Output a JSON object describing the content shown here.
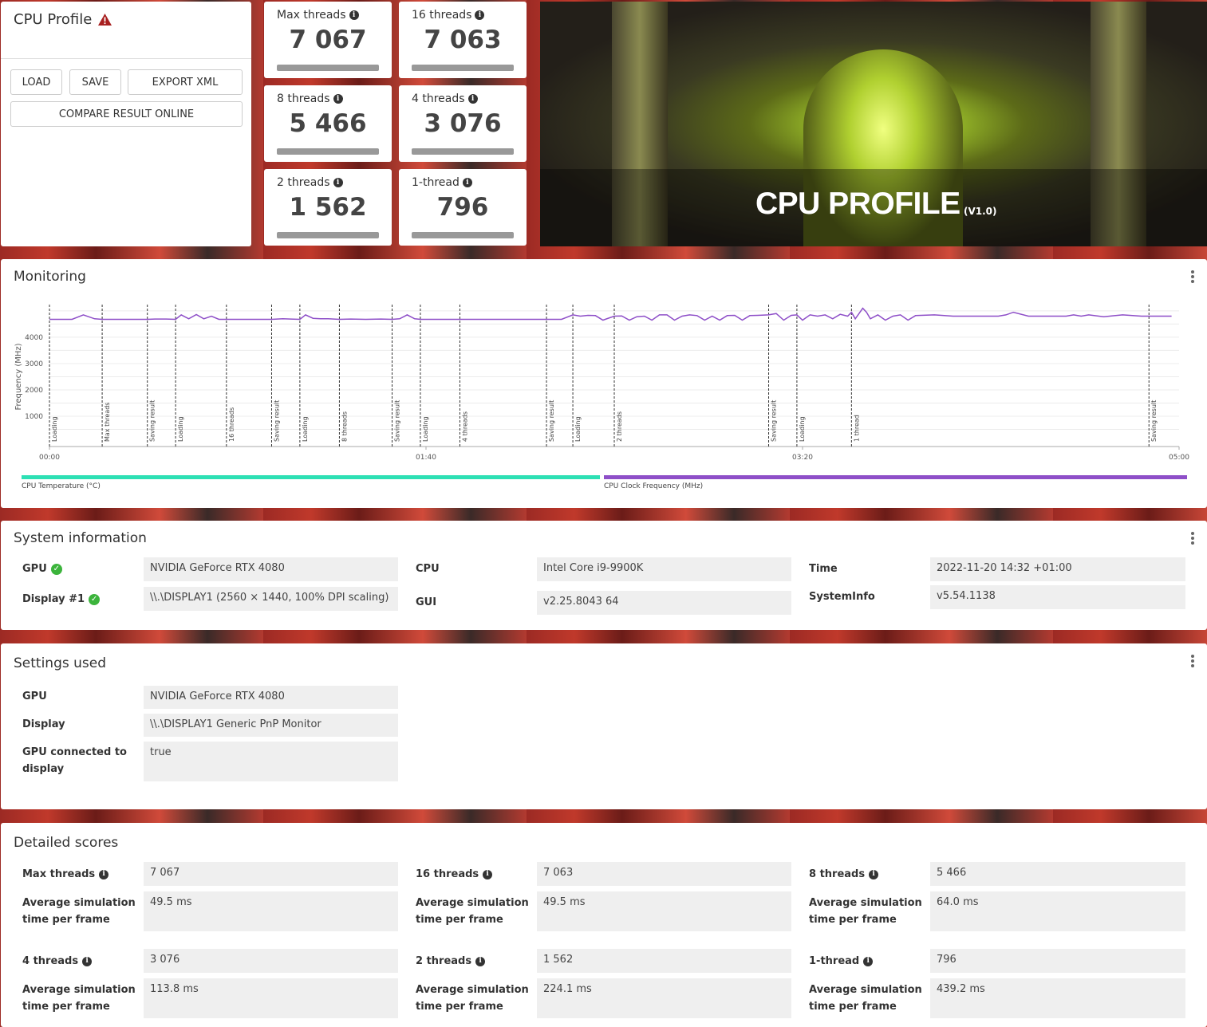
{
  "profile": {
    "title": "CPU Profile",
    "load": "LOAD",
    "save": "SAVE",
    "export": "EXPORT XML",
    "compare": "COMPARE RESULT ONLINE"
  },
  "tiles": [
    {
      "label": "Max threads",
      "value": "7 067"
    },
    {
      "label": "16 threads",
      "value": "7 063"
    },
    {
      "label": "8 threads",
      "value": "5 466"
    },
    {
      "label": "4 threads",
      "value": "3 076"
    },
    {
      "label": "2 threads",
      "value": "1 562"
    },
    {
      "label": "1-thread",
      "value": "796"
    }
  ],
  "hero": {
    "title": "CPU PROFILE",
    "version": "(V1.0)"
  },
  "monitoring": {
    "title": "Monitoring",
    "legend_temp": "CPU Temperature (°C)",
    "legend_clock": "CPU Clock Frequency (MHz)",
    "temp_color": "#2de0b4",
    "clock_color": "#8e4fc8"
  },
  "chart_data": {
    "type": "line",
    "ylabel": "Frequency (MHz)",
    "yticks": [
      1000,
      2000,
      3000,
      4000
    ],
    "ylim": [
      0,
      5300
    ],
    "xlim_seconds": [
      0,
      300
    ],
    "xticks": [
      "00:00",
      "01:40",
      "03:20",
      "05:00"
    ],
    "xtick_seconds": [
      0,
      100,
      200,
      300
    ],
    "markers": [
      {
        "t": 0,
        "label": "Loading"
      },
      {
        "t": 14,
        "label": "Max threads"
      },
      {
        "t": 26,
        "label": "Saving result"
      },
      {
        "t": 33.5,
        "label": "Loading"
      },
      {
        "t": 47,
        "label": "16 threads"
      },
      {
        "t": 59,
        "label": "Saving result"
      },
      {
        "t": 66.5,
        "label": "Loading"
      },
      {
        "t": 77,
        "label": "8 threads"
      },
      {
        "t": 91,
        "label": "Saving result"
      },
      {
        "t": 98.5,
        "label": "Loading"
      },
      {
        "t": 109,
        "label": "4 threads"
      },
      {
        "t": 132,
        "label": "Saving result"
      },
      {
        "t": 139,
        "label": "Loading"
      },
      {
        "t": 150,
        "label": "2 threads"
      },
      {
        "t": 191,
        "label": "Saving result"
      },
      {
        "t": 198.5,
        "label": "Loading"
      },
      {
        "t": 213,
        "label": "1 thread"
      },
      {
        "t": 292,
        "label": "Saving result"
      }
    ],
    "series": [
      {
        "name": "CPU Clock Frequency (MHz)",
        "t": [
          0,
          3,
          6,
          9,
          12,
          14,
          16,
          20,
          24,
          26,
          28,
          31,
          33.5,
          35,
          37,
          39,
          41,
          43,
          45,
          47,
          50,
          53,
          56,
          59,
          62,
          64,
          66.5,
          68,
          70,
          72,
          74,
          77,
          80,
          84,
          88,
          91,
          93,
          95,
          97,
          98.5,
          101,
          104,
          107,
          109,
          115,
          120,
          126,
          132,
          134,
          136,
          139,
          141,
          143,
          145,
          147,
          150,
          152,
          154,
          156,
          158,
          160,
          162,
          164,
          166,
          168,
          170,
          172,
          174,
          176,
          178,
          180,
          182,
          184,
          186,
          188,
          191,
          193,
          195,
          197,
          198.5,
          200,
          202,
          204,
          206,
          208,
          210,
          212,
          213,
          214,
          215,
          216,
          217,
          218,
          220,
          222,
          224,
          226,
          228,
          230,
          235,
          240,
          245,
          250,
          252,
          254,
          256,
          260,
          265,
          270,
          272,
          274,
          276,
          280,
          285,
          290,
          292,
          295,
          298
        ],
        "v": [
          4680,
          4680,
          4680,
          4850,
          4700,
          4680,
          4680,
          4680,
          4680,
          4680,
          4690,
          4690,
          4680,
          4850,
          4700,
          4860,
          4700,
          4800,
          4680,
          4680,
          4680,
          4680,
          4680,
          4680,
          4700,
          4690,
          4680,
          4850,
          4720,
          4700,
          4700,
          4680,
          4690,
          4680,
          4690,
          4680,
          4700,
          4850,
          4700,
          4680,
          4680,
          4680,
          4680,
          4680,
          4680,
          4680,
          4680,
          4680,
          4680,
          4680,
          4850,
          4800,
          4830,
          4820,
          4650,
          4800,
          4810,
          4650,
          4780,
          4800,
          4650,
          4850,
          4850,
          4650,
          4800,
          4850,
          4820,
          4650,
          4800,
          4650,
          4820,
          4830,
          4650,
          4820,
          4830,
          4850,
          4900,
          4650,
          4830,
          4850,
          4650,
          4850,
          4800,
          4850,
          4700,
          4870,
          4800,
          4950,
          4700,
          4900,
          5100,
          4950,
          4700,
          4850,
          4650,
          4800,
          4850,
          4650,
          4820,
          4850,
          4800,
          4800,
          4800,
          4800,
          4850,
          4950,
          4800,
          4800,
          4800,
          4850,
          4800,
          4850,
          4780,
          4850,
          4800,
          4800,
          4800,
          4800,
          4800,
          4800,
          4820
        ]
      }
    ]
  },
  "system": {
    "title": "System information",
    "gpu_k": "GPU",
    "gpu_v": "NVIDIA GeForce RTX 4080",
    "display_k": "Display #1",
    "display_v": "\\\\.\\DISPLAY1 (2560 × 1440, 100% DPI scaling)",
    "cpu_k": "CPU",
    "cpu_v": "Intel Core i9-9900K",
    "gui_k": "GUI",
    "gui_v": "v2.25.8043 64",
    "time_k": "Time",
    "time_v": "2022-11-20 14:32 +01:00",
    "sysinfo_k": "SystemInfo",
    "sysinfo_v": "v5.54.1138"
  },
  "settings": {
    "title": "Settings used",
    "gpu_k": "GPU",
    "gpu_v": "NVIDIA GeForce RTX 4080",
    "display_k": "Display",
    "display_v": "\\\\.\\DISPLAY1 Generic PnP Monitor",
    "conn_k": "GPU connected to display",
    "conn_v": "true"
  },
  "detailed": {
    "title": "Detailed scores",
    "avg_label": "Average simulation time per frame",
    "items": [
      {
        "label": "Max threads",
        "score": "7 067",
        "avg": "49.5 ms"
      },
      {
        "label": "16 threads",
        "score": "7 063",
        "avg": "49.5 ms"
      },
      {
        "label": "8 threads",
        "score": "5 466",
        "avg": "64.0 ms"
      },
      {
        "label": "4 threads",
        "score": "3 076",
        "avg": "113.8 ms"
      },
      {
        "label": "2 threads",
        "score": "1 562",
        "avg": "224.1 ms"
      },
      {
        "label": "1-thread",
        "score": "796",
        "avg": "439.2 ms"
      }
    ]
  }
}
